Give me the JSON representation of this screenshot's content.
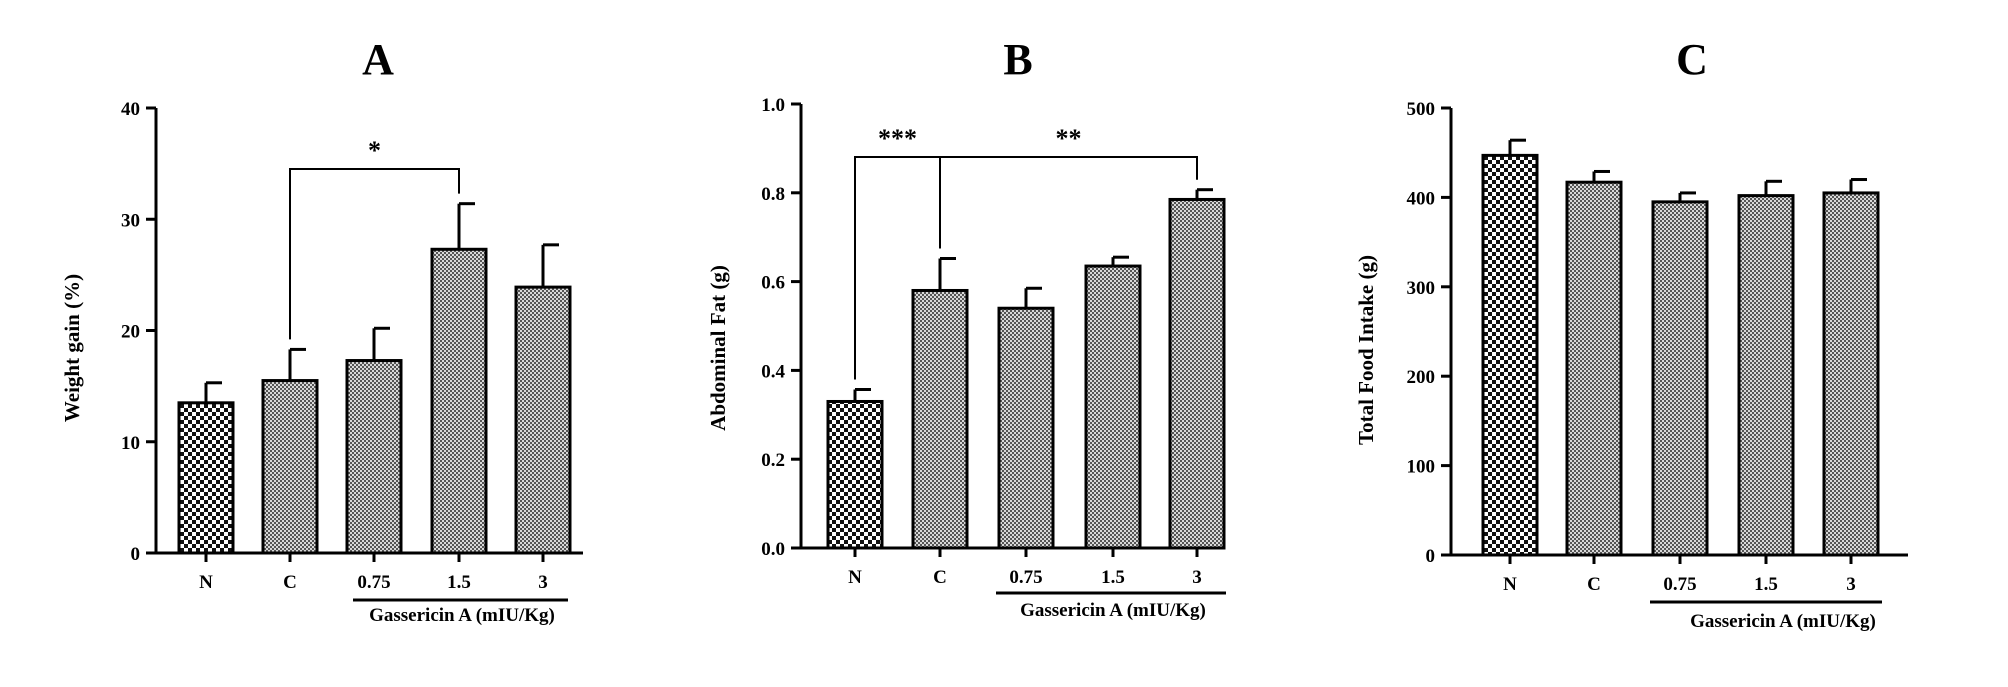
{
  "figure": {
    "panel_letters": [
      "A",
      "B",
      "C"
    ],
    "group_label": "Gassericin A (mIU/Kg)"
  },
  "chart_data": [
    {
      "type": "bar",
      "panel": "A",
      "title": "A",
      "xlabel": "",
      "ylabel": "Weight gain (%)",
      "categories": [
        "N",
        "C",
        "0.75",
        "1.5",
        "3"
      ],
      "values": [
        13.5,
        15.5,
        17.3,
        27.3,
        23.9
      ],
      "errors": [
        1.8,
        2.8,
        2.9,
        4.1,
        3.8
      ],
      "patterns": [
        "coarse",
        "fine",
        "fine",
        "fine",
        "fine"
      ],
      "ylim": [
        0,
        40
      ],
      "yticks": [
        0,
        10,
        20,
        30,
        40
      ],
      "group_label": "Gassericin A (mIU/Kg)",
      "significance": [
        {
          "from": "C",
          "to": "1.5",
          "label": "*"
        }
      ]
    },
    {
      "type": "bar",
      "panel": "B",
      "title": "B",
      "xlabel": "",
      "ylabel": "Abdominal Fat (g)",
      "categories": [
        "N",
        "C",
        "0.75",
        "1.5",
        "3"
      ],
      "values": [
        0.33,
        0.58,
        0.54,
        0.635,
        0.785
      ],
      "errors": [
        0.027,
        0.072,
        0.045,
        0.02,
        0.022
      ],
      "patterns": [
        "coarse",
        "fine",
        "fine",
        "fine",
        "fine"
      ],
      "ylim": [
        0,
        1
      ],
      "yticks": [
        "0.0",
        "0.2",
        "0.4",
        "0.6",
        "0.8",
        "1.0"
      ],
      "group_label": "Gassericin A (mIU/Kg)",
      "significance": [
        {
          "from": "N",
          "to": "C",
          "label": "***"
        },
        {
          "from": "C",
          "to": "3",
          "label": "**"
        }
      ]
    },
    {
      "type": "bar",
      "panel": "C",
      "title": "C",
      "xlabel": "",
      "ylabel": "Total Food Intake (g)",
      "categories": [
        "N",
        "C",
        "0.75",
        "1.5",
        "3"
      ],
      "values": [
        447,
        417,
        395,
        402,
        405
      ],
      "errors": [
        17,
        12,
        10,
        16,
        15
      ],
      "patterns": [
        "coarse",
        "fine",
        "fine",
        "fine",
        "fine"
      ],
      "ylim": [
        0,
        500
      ],
      "yticks": [
        0,
        100,
        200,
        300,
        400,
        500
      ],
      "group_label": "Gassericin A (mIU/Kg)",
      "significance": []
    }
  ]
}
